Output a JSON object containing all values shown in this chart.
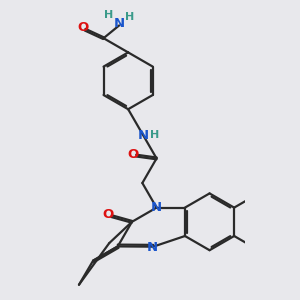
{
  "background_color": "#e8e8ec",
  "bond_color": "#2a2a2a",
  "bond_width": 1.6,
  "dbo": 0.055,
  "atom_colors": {
    "N": "#1a55cc",
    "O": "#dd1111",
    "H": "#3a9a8a",
    "C": "#2a2a2a"
  },
  "fs": 8.5,
  "figsize": [
    3.0,
    3.0
  ],
  "dpi": 100
}
